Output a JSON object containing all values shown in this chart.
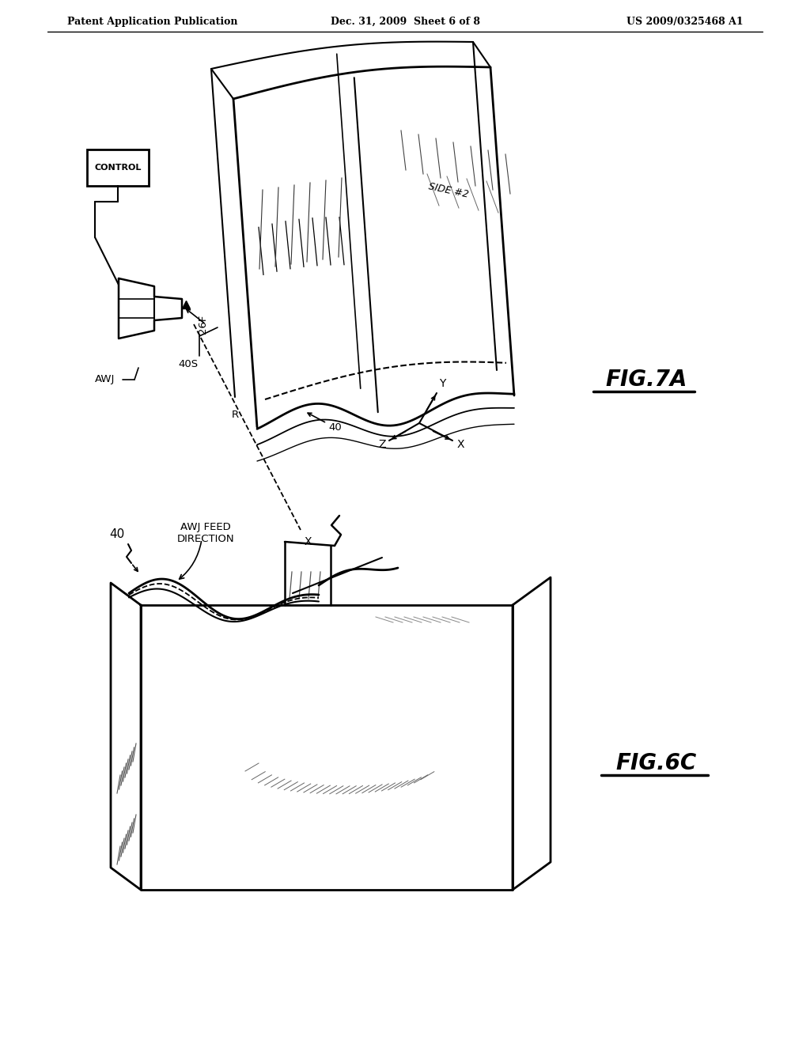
{
  "bg_color": "#ffffff",
  "line_color": "#000000",
  "header_left": "Patent Application Publication",
  "header_center": "Dec. 31, 2009  Sheet 6 of 8",
  "header_right": "US 2009/0325468 A1",
  "fig7a_label": "FIG.7A",
  "fig6c_label": "FIG.6C",
  "control_label": "CONTROL",
  "awj_label": "AWJ",
  "label_26f": "26F",
  "label_40_top": "40",
  "label_40s": "40S",
  "label_r": "R",
  "label_side2": "SIDE #2",
  "label_40_lower": "40",
  "label_awj_feed": "AWJ FEED\nDIRECTION"
}
